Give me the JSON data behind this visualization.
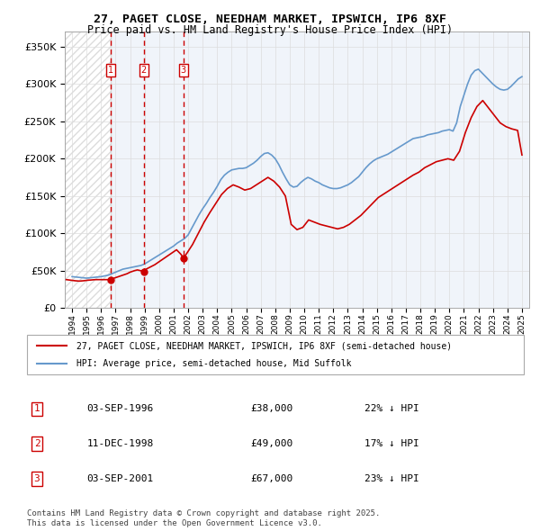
{
  "title": "27, PAGET CLOSE, NEEDHAM MARKET, IPSWICH, IP6 8XF",
  "subtitle": "Price paid vs. HM Land Registry's House Price Index (HPI)",
  "legend_entry1": "27, PAGET CLOSE, NEEDHAM MARKET, IPSWICH, IP6 8XF (semi-detached house)",
  "legend_entry2": "HPI: Average price, semi-detached house, Mid Suffolk",
  "footnote": "Contains HM Land Registry data © Crown copyright and database right 2025.\nThis data is licensed under the Open Government Licence v3.0.",
  "transactions": [
    {
      "num": 1,
      "date": "03-SEP-1996",
      "price": 38000,
      "pct": "22%",
      "dir": "↓",
      "x": 1996.67
    },
    {
      "num": 2,
      "date": "11-DEC-1998",
      "price": 49000,
      "pct": "17%",
      "dir": "↓",
      "x": 1998.94
    },
    {
      "num": 3,
      "date": "03-SEP-2001",
      "price": 67000,
      "pct": "23%",
      "dir": "↓",
      "x": 2001.67
    }
  ],
  "hpi_color": "#6699cc",
  "price_color": "#cc0000",
  "transaction_marker_color": "#cc0000",
  "dashed_line_color": "#cc0000",
  "background_hatch_color": "#cccccc",
  "ylim": [
    0,
    370000
  ],
  "xlim": [
    1993.5,
    2025.5
  ],
  "hpi_data_x": [
    1994,
    1994.25,
    1994.5,
    1994.75,
    1995,
    1995.25,
    1995.5,
    1995.75,
    1996,
    1996.25,
    1996.5,
    1996.75,
    1997,
    1997.25,
    1997.5,
    1997.75,
    1998,
    1998.25,
    1998.5,
    1998.75,
    1999,
    1999.25,
    1999.5,
    1999.75,
    2000,
    2000.25,
    2000.5,
    2000.75,
    2001,
    2001.25,
    2001.5,
    2001.75,
    2002,
    2002.25,
    2002.5,
    2002.75,
    2003,
    2003.25,
    2003.5,
    2003.75,
    2004,
    2004.25,
    2004.5,
    2004.75,
    2005,
    2005.25,
    2005.5,
    2005.75,
    2006,
    2006.25,
    2006.5,
    2006.75,
    2007,
    2007.25,
    2007.5,
    2007.75,
    2008,
    2008.25,
    2008.5,
    2008.75,
    2009,
    2009.25,
    2009.5,
    2009.75,
    2010,
    2010.25,
    2010.5,
    2010.75,
    2011,
    2011.25,
    2011.5,
    2011.75,
    2012,
    2012.25,
    2012.5,
    2012.75,
    2013,
    2013.25,
    2013.5,
    2013.75,
    2014,
    2014.25,
    2014.5,
    2014.75,
    2015,
    2015.25,
    2015.5,
    2015.75,
    2016,
    2016.25,
    2016.5,
    2016.75,
    2017,
    2017.25,
    2017.5,
    2017.75,
    2018,
    2018.25,
    2018.5,
    2018.75,
    2019,
    2019.25,
    2019.5,
    2019.75,
    2020,
    2020.25,
    2020.5,
    2020.75,
    2021,
    2021.25,
    2021.5,
    2021.75,
    2022,
    2022.25,
    2022.5,
    2022.75,
    2023,
    2023.25,
    2023.5,
    2023.75,
    2024,
    2024.25,
    2024.5,
    2024.75,
    2025
  ],
  "hpi_data_y": [
    42000,
    41500,
    41000,
    40500,
    40000,
    40500,
    41000,
    41500,
    42000,
    43000,
    44000,
    46000,
    48000,
    50000,
    52000,
    53000,
    54000,
    55000,
    56000,
    57000,
    59000,
    62000,
    65000,
    68000,
    71000,
    74000,
    77000,
    80000,
    83000,
    87000,
    90000,
    93000,
    98000,
    107000,
    116000,
    125000,
    133000,
    140000,
    148000,
    155000,
    163000,
    172000,
    178000,
    182000,
    185000,
    186000,
    187000,
    187000,
    188000,
    191000,
    194000,
    198000,
    203000,
    207000,
    208000,
    205000,
    200000,
    192000,
    182000,
    173000,
    165000,
    162000,
    163000,
    168000,
    172000,
    175000,
    173000,
    170000,
    168000,
    165000,
    163000,
    161000,
    160000,
    160000,
    161000,
    163000,
    165000,
    168000,
    172000,
    176000,
    182000,
    188000,
    193000,
    197000,
    200000,
    202000,
    204000,
    206000,
    209000,
    212000,
    215000,
    218000,
    221000,
    224000,
    227000,
    228000,
    229000,
    230000,
    232000,
    233000,
    234000,
    235000,
    237000,
    238000,
    239000,
    237000,
    248000,
    270000,
    285000,
    300000,
    312000,
    318000,
    320000,
    315000,
    310000,
    305000,
    300000,
    296000,
    293000,
    292000,
    293000,
    297000,
    302000,
    307000,
    310000
  ],
  "price_data_x": [
    1993.6,
    1994.0,
    1994.2,
    1994.5,
    1994.8,
    1995.0,
    1995.3,
    1995.6,
    1995.8,
    1996.0,
    1996.3,
    1996.67,
    1996.9,
    1997.2,
    1997.5,
    1997.8,
    1998.0,
    1998.3,
    1998.5,
    1998.94,
    1999.1,
    1999.4,
    1999.7,
    2000.0,
    2000.3,
    2000.6,
    2000.9,
    2001.2,
    2001.5,
    2001.67,
    2001.9,
    2002.3,
    2002.7,
    2003.1,
    2003.5,
    2003.9,
    2004.3,
    2004.7,
    2005.1,
    2005.5,
    2005.9,
    2006.3,
    2006.7,
    2007.1,
    2007.5,
    2007.9,
    2008.3,
    2008.7,
    2009.1,
    2009.5,
    2009.9,
    2010.3,
    2010.7,
    2011.1,
    2011.5,
    2011.9,
    2012.3,
    2012.7,
    2013.1,
    2013.5,
    2013.9,
    2014.3,
    2014.7,
    2015.1,
    2015.5,
    2015.9,
    2016.3,
    2016.7,
    2017.1,
    2017.5,
    2017.9,
    2018.3,
    2018.7,
    2019.1,
    2019.5,
    2019.9,
    2020.3,
    2020.7,
    2021.1,
    2021.5,
    2021.9,
    2022.3,
    2022.7,
    2023.1,
    2023.5,
    2023.9,
    2024.3,
    2024.7,
    2025.0
  ],
  "price_data_y": [
    38000,
    37000,
    36500,
    36000,
    36500,
    37000,
    37500,
    38000,
    38000,
    38000,
    38000,
    38000,
    40000,
    42000,
    44000,
    46000,
    48000,
    50000,
    51000,
    49000,
    52000,
    55000,
    58000,
    62000,
    66000,
    70000,
    74000,
    78000,
    72000,
    67000,
    73000,
    85000,
    100000,
    115000,
    128000,
    140000,
    152000,
    160000,
    165000,
    162000,
    158000,
    160000,
    165000,
    170000,
    175000,
    170000,
    162000,
    150000,
    112000,
    105000,
    108000,
    118000,
    115000,
    112000,
    110000,
    108000,
    106000,
    108000,
    112000,
    118000,
    124000,
    132000,
    140000,
    148000,
    153000,
    158000,
    163000,
    168000,
    173000,
    178000,
    182000,
    188000,
    192000,
    196000,
    198000,
    200000,
    198000,
    210000,
    235000,
    255000,
    270000,
    278000,
    268000,
    258000,
    248000,
    243000,
    240000,
    238000,
    205000
  ]
}
